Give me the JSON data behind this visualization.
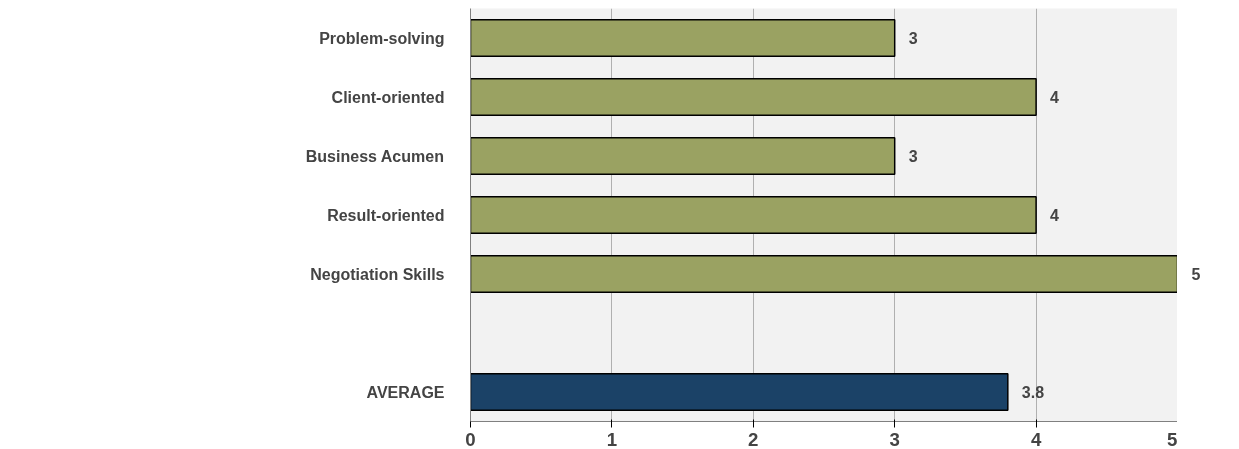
{
  "chart_data": {
    "type": "bar",
    "orientation": "horizontal",
    "categories": [
      "Problem-solving",
      "Client-oriented",
      "Business Acumen",
      "Result-oriented",
      "Negotiation Skills",
      null,
      "AVERAGE"
    ],
    "values": [
      3,
      4,
      3,
      4,
      5,
      null,
      3.8
    ],
    "colors": [
      "#9aa262",
      "#9aa262",
      "#9aa262",
      "#9aa262",
      "#9aa262",
      "#9aa262",
      "#1b4267"
    ],
    "xlim": [
      0,
      5
    ],
    "xticks": [
      0,
      1,
      2,
      3,
      4,
      5
    ],
    "grid": "x",
    "data_labels": true
  }
}
